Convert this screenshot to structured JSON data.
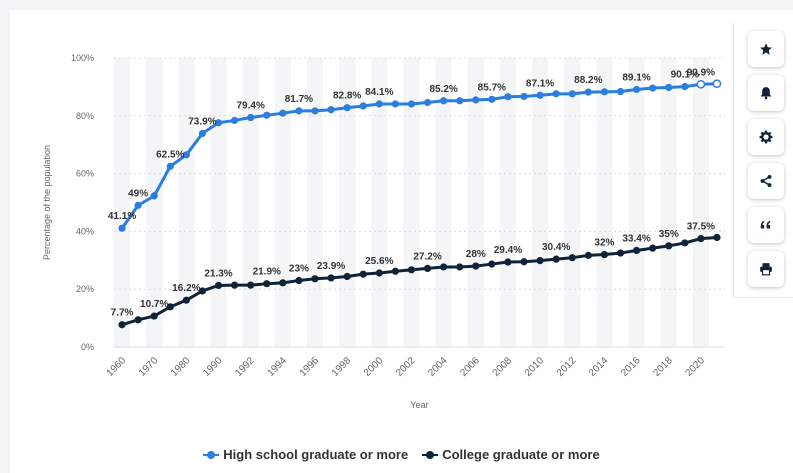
{
  "toolbar": {
    "buttons": [
      {
        "name": "favorite-button",
        "icon": "star-icon"
      },
      {
        "name": "notification-button",
        "icon": "bell-icon"
      },
      {
        "name": "settings-button",
        "icon": "gear-icon"
      },
      {
        "name": "share-button",
        "icon": "share-icon"
      },
      {
        "name": "cite-button",
        "icon": "quote-icon"
      },
      {
        "name": "print-button",
        "icon": "printer-icon"
      }
    ]
  },
  "colors": {
    "high_school": "#2b7de0",
    "college": "#0f2338",
    "grid": "#d9dce0",
    "band": "#f4f5f6",
    "axis_text": "#666666",
    "label_text": "#333333"
  },
  "chart_data": {
    "type": "line",
    "title": "",
    "xlabel": "Year",
    "ylabel": "Percentage of the population",
    "ylim": [
      0,
      100
    ],
    "y_ticks": [
      "0%",
      "20%",
      "40%",
      "60%",
      "80%",
      "100%"
    ],
    "x_tick_labels": [
      "1960",
      "1970",
      "1980",
      "1990",
      "1992",
      "1994",
      "1996",
      "1998",
      "2000",
      "2002",
      "2004",
      "2006",
      "2008",
      "2010",
      "2012",
      "2014",
      "2016",
      "2018",
      "2020"
    ],
    "x": [
      1960,
      1965,
      1970,
      1975,
      1980,
      1985,
      1990,
      1991,
      1992,
      1993,
      1994,
      1995,
      1996,
      1997,
      1998,
      1999,
      2000,
      2001,
      2002,
      2003,
      2004,
      2005,
      2006,
      2007,
      2008,
      2009,
      2010,
      2011,
      2012,
      2013,
      2014,
      2015,
      2016,
      2017,
      2018,
      2019,
      2020,
      2021
    ],
    "grid": true,
    "legend_position": "bottom-center",
    "series": [
      {
        "name": "High school graduate or more",
        "values": [
          41.1,
          49,
          52.3,
          62.5,
          66.5,
          73.9,
          77.6,
          78.4,
          79.4,
          80.2,
          80.9,
          81.7,
          81.7,
          82.1,
          82.8,
          83.4,
          84.1,
          84.1,
          84.1,
          84.6,
          85.2,
          85.2,
          85.5,
          85.7,
          86.6,
          86.7,
          87.1,
          87.6,
          87.6,
          88.2,
          88.3,
          88.4,
          89.1,
          89.6,
          89.8,
          90.1,
          90.9,
          91.1
        ],
        "labels": {
          "0": "41.1%",
          "1": "49%",
          "3": "62.5%",
          "5": "73.9%",
          "8": "79.4%",
          "11": "81.7%",
          "14": "82.8%",
          "16": "84.1%",
          "20": "85.2%",
          "23": "85.7%",
          "26": "87.1%",
          "29": "88.2%",
          "32": "89.1%",
          "35": "90.1%",
          "36": "90.9%"
        }
      },
      {
        "name": "College graduate or more",
        "values": [
          7.7,
          9.4,
          10.7,
          13.9,
          16.2,
          19.4,
          21.3,
          21.4,
          21.4,
          21.9,
          22.2,
          23,
          23.6,
          23.9,
          24.4,
          25.2,
          25.6,
          26.2,
          26.7,
          27.2,
          27.7,
          27.7,
          28,
          28.7,
          29.4,
          29.5,
          29.9,
          30.4,
          30.9,
          31.7,
          32,
          32.5,
          33.4,
          34.2,
          35,
          36,
          37.5,
          37.9
        ],
        "labels": {
          "0": "7.7%",
          "2": "10.7%",
          "4": "16.2%",
          "6": "21.3%",
          "9": "21.9%",
          "11": "23%",
          "13": "23.9%",
          "16": "25.6%",
          "19": "27.2%",
          "22": "28%",
          "24": "29.4%",
          "27": "30.4%",
          "30": "32%",
          "32": "33.4%",
          "34": "35%",
          "36": "37.5%"
        }
      }
    ]
  }
}
